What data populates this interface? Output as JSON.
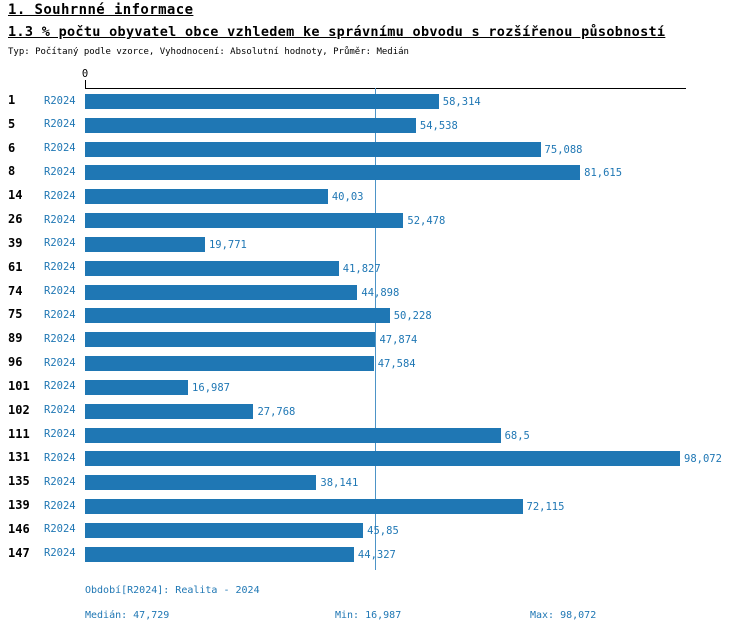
{
  "header": {
    "title": "1. Souhrnné informace",
    "subtitle": "1.3 % počtu obyvatel obce vzhledem ke správnímu obvodu s rozšířenou působností",
    "meta": "Typ: Počítaný podle vzorce, Vyhodnocení: Absolutní hodnoty, Průměr: Medián"
  },
  "chart_data": {
    "type": "bar",
    "orientation": "horizontal",
    "title": "1.3 % počtu obyvatel obce vzhledem ke správnímu obvodu s rozšířenou působností",
    "x_axis": {
      "zero_label": "0",
      "min": 0,
      "max": 98.072
    },
    "series_label": "R2024",
    "rows": [
      {
        "id": "1",
        "period": "R2024",
        "value": 58.314,
        "label": "58,314"
      },
      {
        "id": "5",
        "period": "R2024",
        "value": 54.538,
        "label": "54,538"
      },
      {
        "id": "6",
        "period": "R2024",
        "value": 75.088,
        "label": "75,088"
      },
      {
        "id": "8",
        "period": "R2024",
        "value": 81.615,
        "label": "81,615"
      },
      {
        "id": "14",
        "period": "R2024",
        "value": 40.03,
        "label": "40,03"
      },
      {
        "id": "26",
        "period": "R2024",
        "value": 52.478,
        "label": "52,478"
      },
      {
        "id": "39",
        "period": "R2024",
        "value": 19.771,
        "label": "19,771"
      },
      {
        "id": "61",
        "period": "R2024",
        "value": 41.827,
        "label": "41,827"
      },
      {
        "id": "74",
        "period": "R2024",
        "value": 44.898,
        "label": "44,898"
      },
      {
        "id": "75",
        "period": "R2024",
        "value": 50.228,
        "label": "50,228"
      },
      {
        "id": "89",
        "period": "R2024",
        "value": 47.874,
        "label": "47,874"
      },
      {
        "id": "96",
        "period": "R2024",
        "value": 47.584,
        "label": "47,584"
      },
      {
        "id": "101",
        "period": "R2024",
        "value": 16.987,
        "label": "16,987"
      },
      {
        "id": "102",
        "period": "R2024",
        "value": 27.768,
        "label": "27,768"
      },
      {
        "id": "111",
        "period": "R2024",
        "value": 68.5,
        "label": "68,5"
      },
      {
        "id": "131",
        "period": "R2024",
        "value": 98.072,
        "label": "98,072"
      },
      {
        "id": "135",
        "period": "R2024",
        "value": 38.141,
        "label": "38,141"
      },
      {
        "id": "139",
        "period": "R2024",
        "value": 72.115,
        "label": "72,115"
      },
      {
        "id": "146",
        "period": "R2024",
        "value": 45.85,
        "label": "45,85"
      },
      {
        "id": "147",
        "period": "R2024",
        "value": 44.327,
        "label": "44,327"
      }
    ],
    "median": {
      "value": 47.729
    },
    "colors": {
      "bar": "#1f77b4",
      "median_line": "#4d94c7",
      "accent_text": "#1f77b4",
      "axis": "#000000"
    },
    "legend_position": "none",
    "grid": false
  },
  "footer": {
    "period": "Období[R2024]: Realita - 2024",
    "median": "Medián: 47,729",
    "min": "Min: 16,987",
    "max": "Max: 98,072"
  }
}
